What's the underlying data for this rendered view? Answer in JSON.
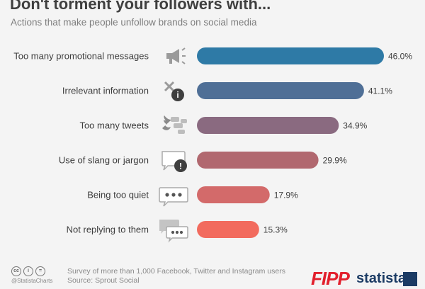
{
  "header": {
    "title": "Don't torment your followers with...",
    "subtitle": "Actions that make people unfollow brands on social media"
  },
  "chart_data": {
    "type": "bar",
    "orientation": "horizontal",
    "title": "Don't torment your followers with...",
    "subtitle": "Actions that make people unfollow brands on social media",
    "categories": [
      "Too many promotional messages",
      "Irrelevant information",
      "Too many tweets",
      "Use of slang or jargon",
      "Being too quiet",
      "Not replying to them"
    ],
    "values": [
      46.0,
      41.1,
      34.9,
      29.9,
      17.9,
      15.3
    ],
    "value_labels": [
      "46.0%",
      "41.1%",
      "34.9%",
      "29.9%",
      "17.9%",
      "15.3%"
    ],
    "bar_colors": [
      "#2e7aa6",
      "#4f6f96",
      "#8a6a80",
      "#b1686f",
      "#d36a6a",
      "#f26b5e"
    ],
    "icons": [
      "megaphone-icon",
      "irrelevant-info-icon",
      "twitter-chat-icon",
      "speech-bubble-exclamation-icon",
      "speech-bubble-dots-icon",
      "chat-bubbles-icon"
    ],
    "xlim": [
      0,
      46.0
    ],
    "grid": false,
    "legend": "none"
  },
  "footer": {
    "note_line1": "Survey of more than 1,000 Facebook, Twitter and Instagram users",
    "note_line2": "Source: Sprout Social",
    "handle": "@StatistaCharts",
    "cc_icons": [
      "cc",
      "i",
      "="
    ],
    "logo_fipp": "FIPP",
    "logo_statista": "statista"
  }
}
